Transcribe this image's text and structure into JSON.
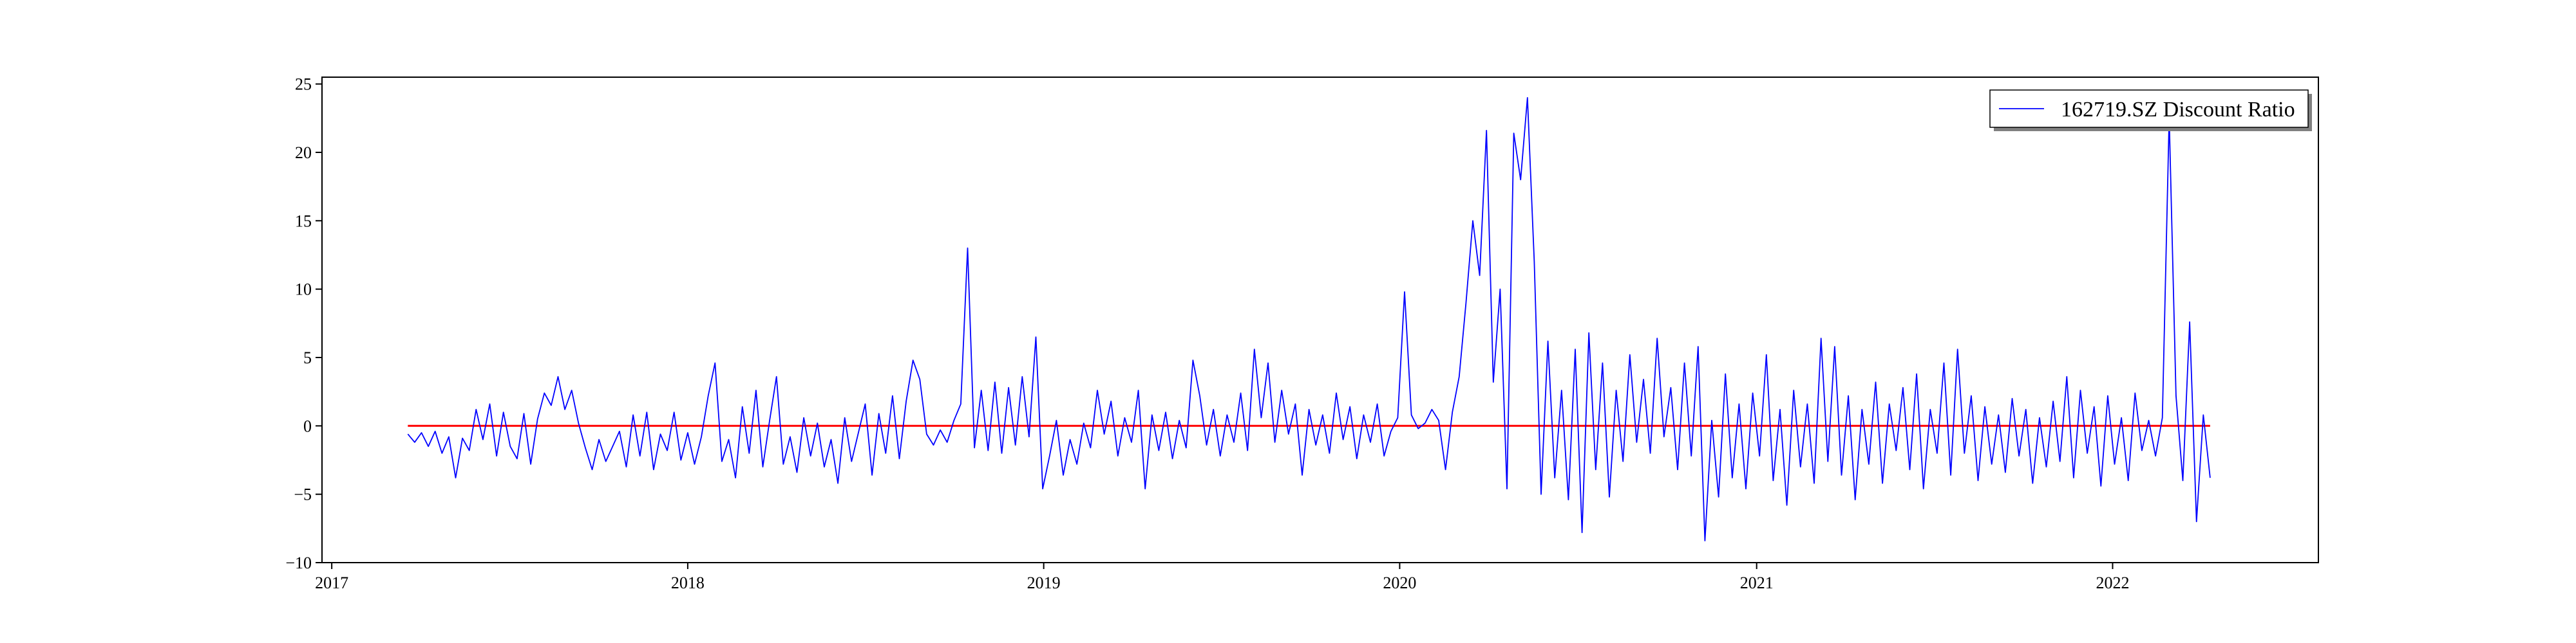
{
  "chart_data": {
    "type": "line",
    "title": "",
    "xlabel": "",
    "ylabel": "",
    "x_ticks": [
      "2017",
      "2018",
      "2019",
      "2020",
      "2021",
      "2022"
    ],
    "y_ticks": [
      "−10",
      "−5",
      "0",
      "5",
      "10",
      "15",
      "20",
      "25"
    ],
    "xlim": [
      "2016-12-22",
      "2022-07-31"
    ],
    "ylim": [
      -10,
      25.5
    ],
    "grid": false,
    "legend_position": "top-right",
    "series": [
      {
        "name": "162719.SZ Discount Ratio",
        "color": "#0000ff",
        "sampled": true,
        "points": [
          [
            "2017-03-20",
            -0.6
          ],
          [
            "2017-03-27",
            -1.2
          ],
          [
            "2017-04-03",
            -0.5
          ],
          [
            "2017-04-10",
            -1.5
          ],
          [
            "2017-04-17",
            -0.4
          ],
          [
            "2017-04-24",
            -2.0
          ],
          [
            "2017-05-01",
            -0.8
          ],
          [
            "2017-05-08",
            -3.8
          ],
          [
            "2017-05-15",
            -0.9
          ],
          [
            "2017-05-22",
            -1.8
          ],
          [
            "2017-05-29",
            1.2
          ],
          [
            "2017-06-05",
            -1.0
          ],
          [
            "2017-06-12",
            1.6
          ],
          [
            "2017-06-19",
            -2.2
          ],
          [
            "2017-06-26",
            1.0
          ],
          [
            "2017-07-03",
            -1.5
          ],
          [
            "2017-07-10",
            -2.4
          ],
          [
            "2017-07-17",
            0.9
          ],
          [
            "2017-07-24",
            -2.8
          ],
          [
            "2017-07-31",
            0.5
          ],
          [
            "2017-08-07",
            2.4
          ],
          [
            "2017-08-14",
            1.5
          ],
          [
            "2017-08-21",
            3.6
          ],
          [
            "2017-08-28",
            1.2
          ],
          [
            "2017-09-04",
            2.6
          ],
          [
            "2017-09-11",
            0.2
          ],
          [
            "2017-09-18",
            -1.6
          ],
          [
            "2017-09-25",
            -3.2
          ],
          [
            "2017-10-02",
            -1.0
          ],
          [
            "2017-10-09",
            -2.6
          ],
          [
            "2017-10-16",
            -1.5
          ],
          [
            "2017-10-23",
            -0.4
          ],
          [
            "2017-10-30",
            -3.0
          ],
          [
            "2017-11-06",
            0.8
          ],
          [
            "2017-11-13",
            -2.2
          ],
          [
            "2017-11-20",
            1.0
          ],
          [
            "2017-11-27",
            -3.2
          ],
          [
            "2017-12-04",
            -0.6
          ],
          [
            "2017-12-11",
            -1.8
          ],
          [
            "2017-12-18",
            1.0
          ],
          [
            "2017-12-25",
            -2.5
          ],
          [
            "2018-01-01",
            -0.5
          ],
          [
            "2018-01-08",
            -2.8
          ],
          [
            "2018-01-15",
            -0.8
          ],
          [
            "2018-01-22",
            2.2
          ],
          [
            "2018-01-29",
            4.6
          ],
          [
            "2018-02-05",
            -2.6
          ],
          [
            "2018-02-12",
            -1.0
          ],
          [
            "2018-02-19",
            -3.8
          ],
          [
            "2018-02-26",
            1.4
          ],
          [
            "2018-03-05",
            -2.0
          ],
          [
            "2018-03-12",
            2.6
          ],
          [
            "2018-03-19",
            -3.0
          ],
          [
            "2018-03-26",
            0.4
          ],
          [
            "2018-04-02",
            3.6
          ],
          [
            "2018-04-09",
            -2.8
          ],
          [
            "2018-04-16",
            -0.8
          ],
          [
            "2018-04-23",
            -3.4
          ],
          [
            "2018-04-30",
            0.6
          ],
          [
            "2018-05-07",
            -2.2
          ],
          [
            "2018-05-14",
            0.2
          ],
          [
            "2018-05-21",
            -3.0
          ],
          [
            "2018-05-28",
            -1.0
          ],
          [
            "2018-06-04",
            -4.2
          ],
          [
            "2018-06-11",
            0.6
          ],
          [
            "2018-06-18",
            -2.6
          ],
          [
            "2018-06-25",
            -0.5
          ],
          [
            "2018-07-02",
            1.6
          ],
          [
            "2018-07-09",
            -3.6
          ],
          [
            "2018-07-16",
            0.9
          ],
          [
            "2018-07-23",
            -2.0
          ],
          [
            "2018-07-30",
            2.2
          ],
          [
            "2018-08-06",
            -2.4
          ],
          [
            "2018-08-13",
            1.8
          ],
          [
            "2018-08-20",
            4.8
          ],
          [
            "2018-08-27",
            3.4
          ],
          [
            "2018-09-03",
            -0.6
          ],
          [
            "2018-09-10",
            -1.4
          ],
          [
            "2018-09-17",
            -0.3
          ],
          [
            "2018-09-24",
            -1.2
          ],
          [
            "2018-10-01",
            0.4
          ],
          [
            "2018-10-08",
            1.6
          ],
          [
            "2018-10-15",
            13.0
          ],
          [
            "2018-10-22",
            -1.6
          ],
          [
            "2018-10-29",
            2.6
          ],
          [
            "2018-11-05",
            -1.8
          ],
          [
            "2018-11-12",
            3.2
          ],
          [
            "2018-11-19",
            -2.0
          ],
          [
            "2018-11-26",
            2.8
          ],
          [
            "2018-12-03",
            -1.4
          ],
          [
            "2018-12-10",
            3.6
          ],
          [
            "2018-12-17",
            -0.8
          ],
          [
            "2018-12-24",
            6.5
          ],
          [
            "2018-12-31",
            -4.6
          ],
          [
            "2019-01-07",
            -2.2
          ],
          [
            "2019-01-14",
            0.4
          ],
          [
            "2019-01-21",
            -3.6
          ],
          [
            "2019-01-28",
            -1.0
          ],
          [
            "2019-02-04",
            -2.8
          ],
          [
            "2019-02-11",
            0.2
          ],
          [
            "2019-02-18",
            -1.6
          ],
          [
            "2019-02-25",
            2.6
          ],
          [
            "2019-03-04",
            -0.6
          ],
          [
            "2019-03-11",
            1.8
          ],
          [
            "2019-03-18",
            -2.2
          ],
          [
            "2019-03-25",
            0.6
          ],
          [
            "2019-04-01",
            -1.2
          ],
          [
            "2019-04-08",
            2.6
          ],
          [
            "2019-04-15",
            -4.6
          ],
          [
            "2019-04-22",
            0.8
          ],
          [
            "2019-04-29",
            -1.8
          ],
          [
            "2019-05-06",
            1.0
          ],
          [
            "2019-05-13",
            -2.4
          ],
          [
            "2019-05-20",
            0.4
          ],
          [
            "2019-05-27",
            -1.6
          ],
          [
            "2019-06-03",
            4.8
          ],
          [
            "2019-06-10",
            2.2
          ],
          [
            "2019-06-17",
            -1.4
          ],
          [
            "2019-06-24",
            1.2
          ],
          [
            "2019-07-01",
            -2.2
          ],
          [
            "2019-07-08",
            0.8
          ],
          [
            "2019-07-15",
            -1.2
          ],
          [
            "2019-07-22",
            2.4
          ],
          [
            "2019-07-29",
            -1.8
          ],
          [
            "2019-08-05",
            5.6
          ],
          [
            "2019-08-12",
            0.6
          ],
          [
            "2019-08-19",
            4.6
          ],
          [
            "2019-08-26",
            -1.2
          ],
          [
            "2019-09-02",
            2.6
          ],
          [
            "2019-09-09",
            -0.6
          ],
          [
            "2019-09-16",
            1.6
          ],
          [
            "2019-09-23",
            -3.6
          ],
          [
            "2019-09-30",
            1.2
          ],
          [
            "2019-10-07",
            -1.4
          ],
          [
            "2019-10-14",
            0.8
          ],
          [
            "2019-10-21",
            -2.0
          ],
          [
            "2019-10-28",
            2.4
          ],
          [
            "2019-11-04",
            -1.0
          ],
          [
            "2019-11-11",
            1.4
          ],
          [
            "2019-11-18",
            -2.4
          ],
          [
            "2019-11-25",
            0.8
          ],
          [
            "2019-12-02",
            -1.2
          ],
          [
            "2019-12-09",
            1.6
          ],
          [
            "2019-12-16",
            -2.2
          ],
          [
            "2019-12-23",
            -0.4
          ],
          [
            "2019-12-30",
            0.6
          ],
          [
            "2020-01-06",
            9.8
          ],
          [
            "2020-01-13",
            0.8
          ],
          [
            "2020-01-20",
            -0.2
          ],
          [
            "2020-01-27",
            0.2
          ],
          [
            "2020-02-03",
            1.2
          ],
          [
            "2020-02-10",
            0.4
          ],
          [
            "2020-02-17",
            -3.2
          ],
          [
            "2020-02-24",
            1.0
          ],
          [
            "2020-03-02",
            3.6
          ],
          [
            "2020-03-09",
            9.0
          ],
          [
            "2020-03-16",
            15.0
          ],
          [
            "2020-03-23",
            11.0
          ],
          [
            "2020-03-30",
            21.6
          ],
          [
            "2020-04-06",
            3.2
          ],
          [
            "2020-04-13",
            10.0
          ],
          [
            "2020-04-20",
            -4.6
          ],
          [
            "2020-04-27",
            21.4
          ],
          [
            "2020-05-04",
            18.0
          ],
          [
            "2020-05-11",
            24.0
          ],
          [
            "2020-05-18",
            12.0
          ],
          [
            "2020-05-25",
            -5.0
          ],
          [
            "2020-06-01",
            6.2
          ],
          [
            "2020-06-08",
            -3.8
          ],
          [
            "2020-06-15",
            2.6
          ],
          [
            "2020-06-22",
            -5.4
          ],
          [
            "2020-06-29",
            5.6
          ],
          [
            "2020-07-06",
            -7.8
          ],
          [
            "2020-07-13",
            6.8
          ],
          [
            "2020-07-20",
            -3.2
          ],
          [
            "2020-07-27",
            4.6
          ],
          [
            "2020-08-03",
            -5.2
          ],
          [
            "2020-08-10",
            2.6
          ],
          [
            "2020-08-17",
            -2.6
          ],
          [
            "2020-08-24",
            5.2
          ],
          [
            "2020-08-31",
            -1.2
          ],
          [
            "2020-09-07",
            3.4
          ],
          [
            "2020-09-14",
            -2.0
          ],
          [
            "2020-09-21",
            6.4
          ],
          [
            "2020-09-28",
            -0.8
          ],
          [
            "2020-10-05",
            2.8
          ],
          [
            "2020-10-12",
            -3.2
          ],
          [
            "2020-10-19",
            4.6
          ],
          [
            "2020-10-26",
            -2.2
          ],
          [
            "2020-11-02",
            5.8
          ],
          [
            "2020-11-09",
            -8.4
          ],
          [
            "2020-11-16",
            0.4
          ],
          [
            "2020-11-23",
            -5.2
          ],
          [
            "2020-11-30",
            3.8
          ],
          [
            "2020-12-07",
            -3.8
          ],
          [
            "2020-12-14",
            1.6
          ],
          [
            "2020-12-21",
            -4.6
          ],
          [
            "2020-12-28",
            2.4
          ],
          [
            "2021-01-04",
            -2.2
          ],
          [
            "2021-01-11",
            5.2
          ],
          [
            "2021-01-18",
            -4.0
          ],
          [
            "2021-01-25",
            1.2
          ],
          [
            "2021-02-01",
            -5.8
          ],
          [
            "2021-02-08",
            2.6
          ],
          [
            "2021-02-15",
            -3.0
          ],
          [
            "2021-02-22",
            1.6
          ],
          [
            "2021-03-01",
            -4.2
          ],
          [
            "2021-03-08",
            6.4
          ],
          [
            "2021-03-15",
            -2.6
          ],
          [
            "2021-03-22",
            5.8
          ],
          [
            "2021-03-29",
            -3.6
          ],
          [
            "2021-04-05",
            2.2
          ],
          [
            "2021-04-12",
            -5.4
          ],
          [
            "2021-04-19",
            1.2
          ],
          [
            "2021-04-26",
            -2.8
          ],
          [
            "2021-05-03",
            3.2
          ],
          [
            "2021-05-10",
            -4.2
          ],
          [
            "2021-05-17",
            1.6
          ],
          [
            "2021-05-24",
            -1.8
          ],
          [
            "2021-05-31",
            2.8
          ],
          [
            "2021-06-07",
            -3.2
          ],
          [
            "2021-06-14",
            3.8
          ],
          [
            "2021-06-21",
            -4.6
          ],
          [
            "2021-06-28",
            1.2
          ],
          [
            "2021-07-05",
            -2.0
          ],
          [
            "2021-07-12",
            4.6
          ],
          [
            "2021-07-19",
            -3.6
          ],
          [
            "2021-07-26",
            5.6
          ],
          [
            "2021-08-02",
            -2.0
          ],
          [
            "2021-08-09",
            2.2
          ],
          [
            "2021-08-16",
            -4.0
          ],
          [
            "2021-08-23",
            1.4
          ],
          [
            "2021-08-30",
            -2.8
          ],
          [
            "2021-09-06",
            0.8
          ],
          [
            "2021-09-13",
            -3.4
          ],
          [
            "2021-09-20",
            2.0
          ],
          [
            "2021-09-27",
            -2.2
          ],
          [
            "2021-10-04",
            1.2
          ],
          [
            "2021-10-11",
            -4.2
          ],
          [
            "2021-10-18",
            0.6
          ],
          [
            "2021-10-25",
            -3.0
          ],
          [
            "2021-11-01",
            1.8
          ],
          [
            "2021-11-08",
            -2.6
          ],
          [
            "2021-11-15",
            3.6
          ],
          [
            "2021-11-22",
            -3.8
          ],
          [
            "2021-11-29",
            2.6
          ],
          [
            "2021-12-06",
            -2.0
          ],
          [
            "2021-12-13",
            1.4
          ],
          [
            "2021-12-20",
            -4.4
          ],
          [
            "2021-12-27",
            2.2
          ],
          [
            "2022-01-03",
            -2.8
          ],
          [
            "2022-01-10",
            0.6
          ],
          [
            "2022-01-17",
            -4.0
          ],
          [
            "2022-01-24",
            2.4
          ],
          [
            "2022-01-31",
            -1.8
          ],
          [
            "2022-02-07",
            0.4
          ],
          [
            "2022-02-14",
            -2.2
          ],
          [
            "2022-02-21",
            0.6
          ],
          [
            "2022-02-28",
            22.6
          ],
          [
            "2022-03-07",
            2.2
          ],
          [
            "2022-03-14",
            -4.0
          ],
          [
            "2022-03-21",
            7.6
          ],
          [
            "2022-03-28",
            -7.0
          ],
          [
            "2022-04-04",
            0.8
          ],
          [
            "2022-04-11",
            -3.8
          ]
        ]
      },
      {
        "name": "",
        "color": "#ff0000",
        "points": [
          [
            "2017-03-20",
            0
          ],
          [
            "2022-04-11",
            0
          ]
        ]
      }
    ]
  }
}
